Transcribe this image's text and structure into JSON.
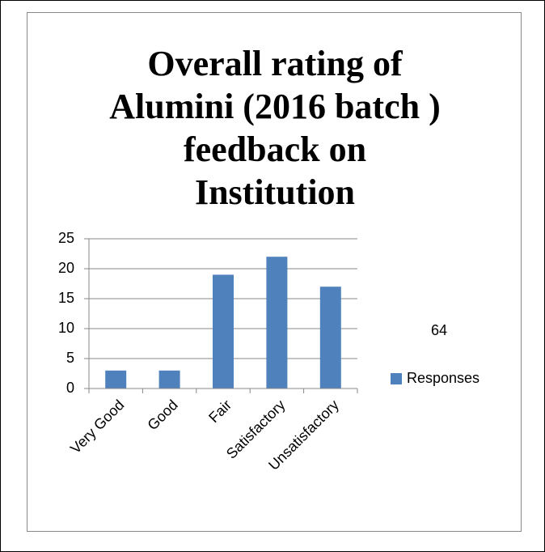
{
  "chart_data": {
    "type": "bar",
    "title": "Overall rating of\nAlumini (2016 batch )\nfeedback on\nInstitution",
    "categories": [
      "Very Good",
      "Good",
      "Fair",
      "Satisfactory",
      "Unsatisfactory"
    ],
    "series": [
      {
        "name": "Responses",
        "color": "#4f81bd",
        "values": [
          3,
          3,
          19,
          22,
          17
        ]
      }
    ],
    "ylim": [
      0,
      25
    ],
    "yticks": [
      0,
      5,
      10,
      15,
      20,
      25
    ],
    "grid": true,
    "annotation": "64",
    "legend": "right"
  }
}
